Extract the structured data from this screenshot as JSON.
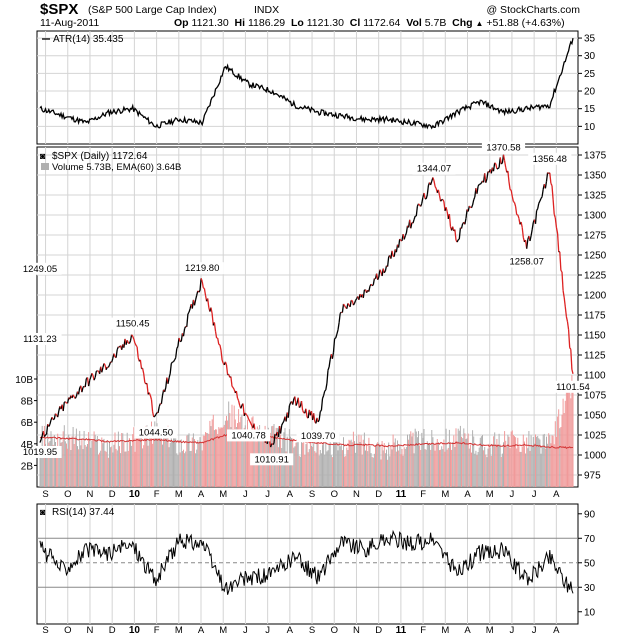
{
  "header": {
    "symbol": "$SPX",
    "name": "(S&P 500 Large Cap Index)",
    "exchange": "INDX",
    "watermark": "@ StockCharts.com",
    "date": "11-Aug-2011",
    "quote": [
      {
        "label": "Op",
        "value": "1121.30"
      },
      {
        "label": "Hi",
        "value": "1186.29"
      },
      {
        "label": "Lo",
        "value": "1121.30"
      },
      {
        "label": "Cl",
        "value": "1172.64"
      },
      {
        "label": "Vol",
        "value": "5.7B"
      },
      {
        "label": "Chg",
        "value": "+51.88 (+4.63%)"
      }
    ],
    "chg_arrow": "up-triangle-icon"
  },
  "colors": {
    "up": "#000000",
    "down": "#dd2222",
    "volume_up": "#b0b0b0",
    "volume_down": "#f09a9a",
    "ema": "#d33333",
    "grid": "#d4d4d4",
    "rsi_ref": "#888888"
  },
  "chart_data": [
    {
      "type": "line",
      "title": "ATR(14) 35.435",
      "x": [
        "Sep 2009",
        "Oct 2009",
        "Nov 2009",
        "Dec 2009",
        "Jan 2010",
        "Feb 2010",
        "Mar 2010",
        "Apr 2010",
        "May 2010",
        "Jun 2010",
        "Jul 2010",
        "Aug 2010",
        "Sep 2010",
        "Oct 2010",
        "Nov 2010",
        "Dec 2010",
        "Jan 2011",
        "Feb 2011",
        "Mar 2011",
        "Apr 2011",
        "May 2011",
        "Jun 2011",
        "Jul 2011",
        "Aug 2011"
      ],
      "series": [
        {
          "name": "ATR(14)",
          "values": [
            15,
            13,
            11,
            14,
            15,
            10,
            12,
            11,
            27,
            22,
            20,
            16,
            14,
            13,
            12,
            12,
            11,
            10,
            14,
            17,
            14,
            15,
            16,
            35
          ]
        }
      ],
      "ylim": [
        5,
        37
      ],
      "yticks": [
        10,
        15,
        20,
        25,
        30,
        35
      ]
    },
    {
      "type": "line",
      "title": "$SPX (Daily) 1172.64",
      "subtitle": "Volume 5.73B, EMA(60) 3.64B",
      "x": [
        "Sep 2009",
        "Oct 2009",
        "Nov 2009",
        "Dec 2009",
        "Jan 2010",
        "Feb 2010",
        "Mar 2010",
        "Apr 2010",
        "May 2010",
        "Jun 2010",
        "Jul 2010",
        "Aug 2010",
        "Sep 2010",
        "Oct 2010",
        "Nov 2010",
        "Dec 2010",
        "Jan 2011",
        "Feb 2011",
        "Mar 2011",
        "Apr 2011",
        "May 2011",
        "Jun 2011",
        "Jul 2011",
        "Aug 2011"
      ],
      "series": [
        {
          "name": "$SPX",
          "values": [
            1019.95,
            1060,
            1090,
            1115,
            1150.45,
            1044.5,
            1140,
            1219.8,
            1110,
            1040.78,
            1010.91,
            1070,
            1039.7,
            1180,
            1200,
            1240,
            1290,
            1344.07,
            1270,
            1340,
            1370.58,
            1258.07,
            1356.48,
            1101.54
          ]
        },
        {
          "name": "Volume",
          "values": [
            4.5,
            4.6,
            4.2,
            3.8,
            4.4,
            5.0,
            4.0,
            4.2,
            7.0,
            5.5,
            4.8,
            4.0,
            4.0,
            3.9,
            4.1,
            3.6,
            4.2,
            4.3,
            4.6,
            3.9,
            4.0,
            4.3,
            3.9,
            9.8
          ]
        },
        {
          "name": "EMA(60)",
          "values": [
            4.6,
            4.5,
            4.4,
            4.2,
            4.3,
            4.4,
            4.2,
            4.1,
            4.8,
            4.9,
            4.6,
            4.3,
            4.1,
            3.9,
            3.9,
            3.8,
            3.9,
            4.0,
            4.1,
            3.9,
            3.8,
            3.9,
            3.7,
            3.64
          ]
        }
      ],
      "annotations": [
        "1019.95",
        "1150.45",
        "1044.50",
        "1219.80",
        "1040.78",
        "1131.23",
        "1010.91",
        "1039.70",
        "1344.07",
        "1249.05",
        "1370.58",
        "1258.07",
        "1356.48",
        "1101.54"
      ],
      "ylim": [
        960,
        1385
      ],
      "yticks": [
        975,
        1000,
        1025,
        1050,
        1075,
        1100,
        1125,
        1150,
        1175,
        1200,
        1225,
        1250,
        1275,
        1300,
        1325,
        1350,
        1375
      ],
      "volume_ticks": [
        "2B",
        "4B",
        "6B",
        "8B",
        "10B"
      ]
    },
    {
      "type": "line",
      "title": "RSI(14) 37.44",
      "x": [
        "Sep 2009",
        "Oct 2009",
        "Nov 2009",
        "Dec 2009",
        "Jan 2010",
        "Feb 2010",
        "Mar 2010",
        "Apr 2010",
        "May 2010",
        "Jun 2010",
        "Jul 2010",
        "Aug 2010",
        "Sep 2010",
        "Oct 2010",
        "Nov 2010",
        "Dec 2010",
        "Jan 2011",
        "Feb 2011",
        "Mar 2011",
        "Apr 2011",
        "May 2011",
        "Jun 2011",
        "Jul 2011",
        "Aug 2011"
      ],
      "series": [
        {
          "name": "RSI(14)",
          "values": [
            62,
            45,
            60,
            58,
            65,
            35,
            68,
            66,
            28,
            38,
            40,
            55,
            38,
            68,
            60,
            70,
            66,
            68,
            42,
            58,
            60,
            36,
            55,
            25
          ]
        }
      ],
      "ylim": [
        0,
        98
      ],
      "yticks": [
        10,
        30,
        50,
        70,
        90
      ],
      "reference_lines": [
        30,
        50,
        70
      ]
    }
  ],
  "x_axis_labels": [
    "S",
    "O",
    "N",
    "D",
    "10",
    "F",
    "M",
    "A",
    "M",
    "J",
    "J",
    "A",
    "S",
    "O",
    "N",
    "D",
    "11",
    "F",
    "M",
    "A",
    "M",
    "J",
    "J",
    "A"
  ]
}
